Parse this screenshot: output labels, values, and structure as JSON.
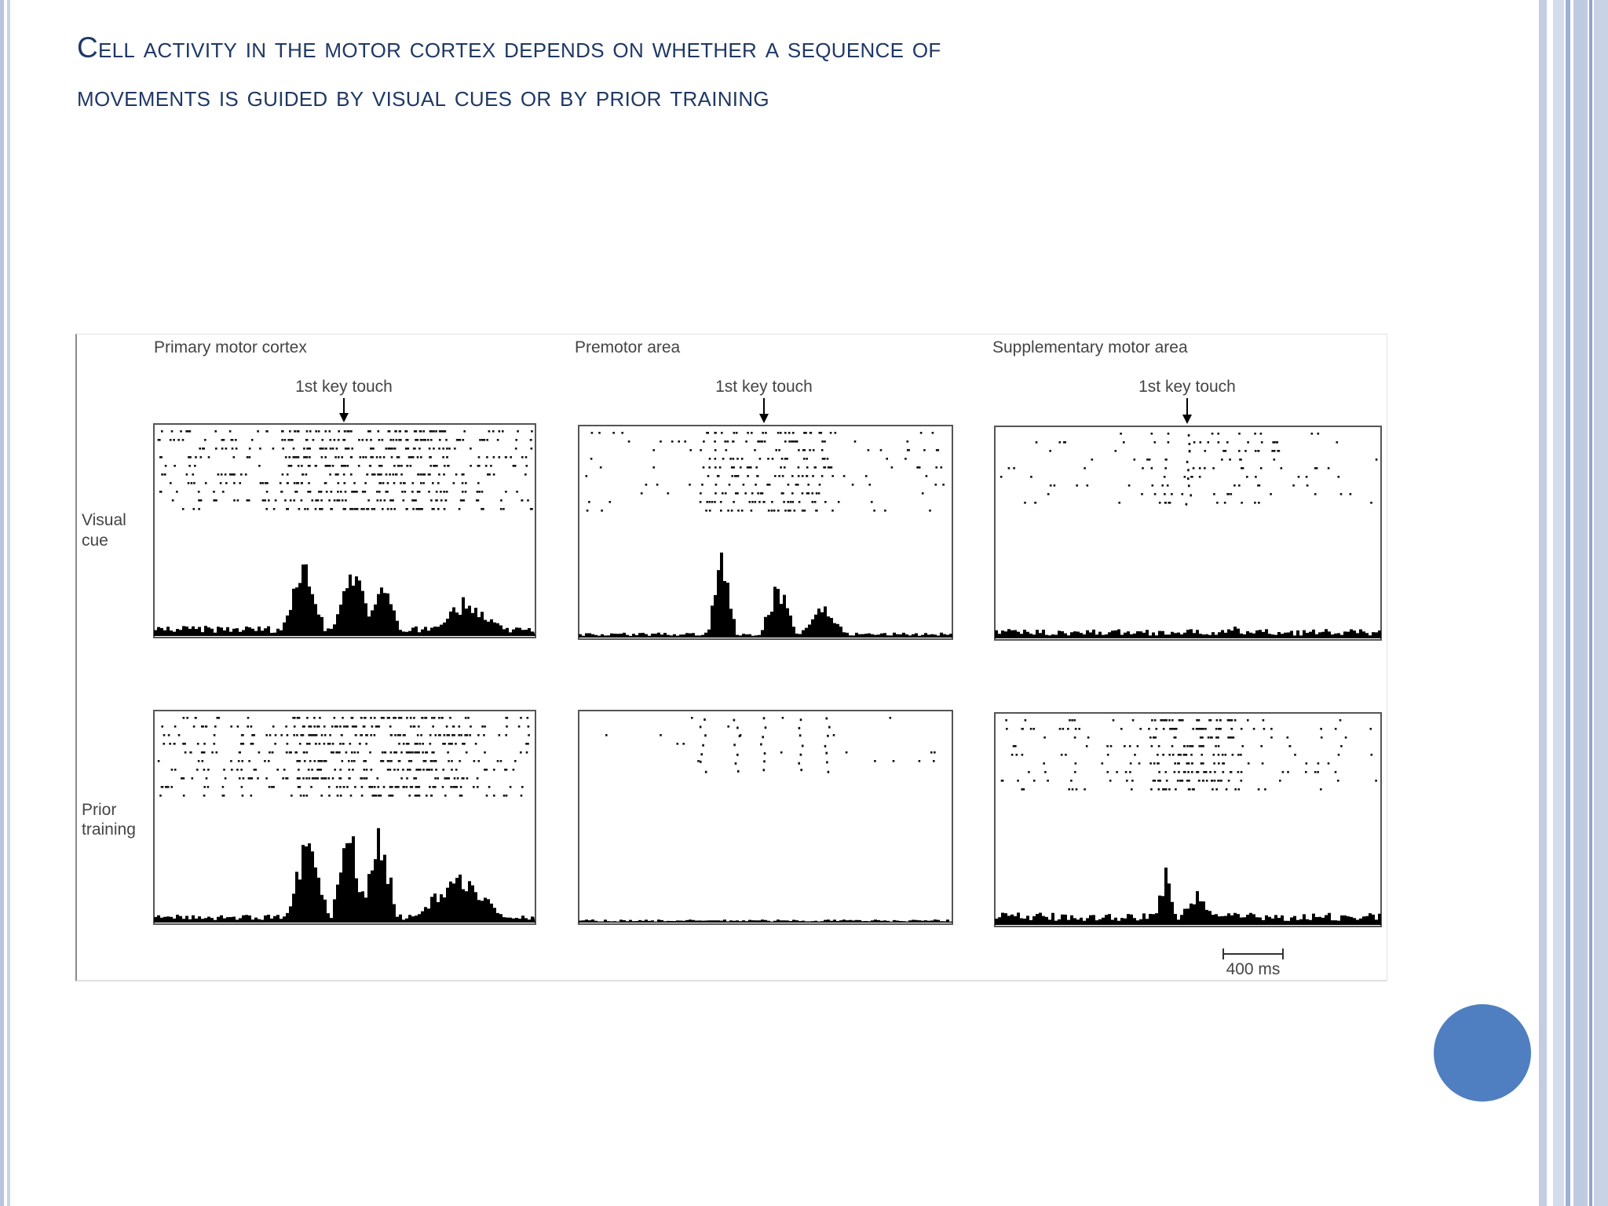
{
  "slide": {
    "title_line1": "Cell activity in the motor cortex depends on whether a sequence of",
    "title_line2": "movements is guided by visual cues or by prior training"
  },
  "figure": {
    "columns": [
      {
        "label": "Primary motor cortex",
        "event": "1st key touch"
      },
      {
        "label": "Premotor area",
        "event": "1st key touch"
      },
      {
        "label": "Supplementary motor area",
        "event": "1st key touch"
      }
    ],
    "rows": [
      {
        "label_line1": "Visual",
        "label_line2": "cue"
      },
      {
        "label_line1": "Prior",
        "label_line2": "training"
      }
    ],
    "scale_bar": "400 ms"
  },
  "colors": {
    "title": "#1f3864",
    "marker": "#4f7fc0",
    "ink": "#000000",
    "label": "#444444"
  }
}
